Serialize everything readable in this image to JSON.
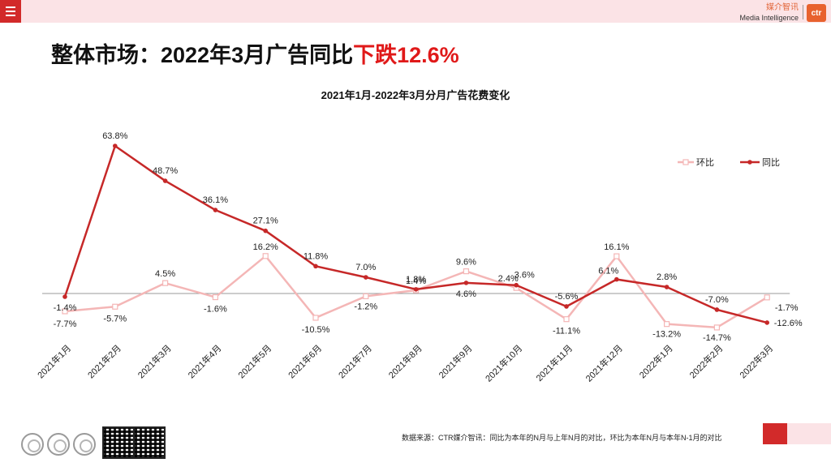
{
  "topbar": {
    "brand_cn": "媒介智讯",
    "brand_en": "Media Intelligence",
    "logo_text": "ctr"
  },
  "headline": {
    "part1": "整体市场：2022年3月广告同比",
    "part2": "下跌12.6%"
  },
  "footer": {
    "note": "数据来源：CTR媒介智讯：同比为本年的N月与上年N月的对比，环比为本年N月与本年N-1月的对比"
  },
  "colors": {
    "yoy": "#c62828",
    "mom": "#f4b6b6",
    "accent": "#d22a2a"
  },
  "chart_data": {
    "type": "line",
    "title": "2021年1月-2022年3月分月广告花费变化",
    "categories": [
      "2021年1月",
      "2021年2月",
      "2021年3月",
      "2021年4月",
      "2021年5月",
      "2021年6月",
      "2021年7月",
      "2021年8月",
      "2021年9月",
      "2021年10月",
      "2021年11月",
      "2021年12月",
      "2022年1月",
      "2022年2月",
      "2022年3月"
    ],
    "series": [
      {
        "name": "环比",
        "values": [
          -7.7,
          -5.7,
          4.5,
          -1.6,
          16.2,
          -10.5,
          -1.2,
          1.4,
          9.6,
          2.4,
          -11.1,
          16.1,
          -13.2,
          -14.7,
          -1.7
        ],
        "labels": [
          "-7.7%",
          "-5.7%",
          "4.5%",
          "-1.6%",
          "16.2%",
          "-10.5%",
          "-1.2%",
          "1.4%",
          "9.6%",
          "2.4%",
          "-11.1%",
          "16.1%",
          "-13.2%",
          "-14.7%",
          "-1.7%"
        ]
      },
      {
        "name": "同比",
        "values": [
          -1.4,
          63.8,
          48.7,
          36.1,
          27.1,
          11.8,
          7.0,
          1.8,
          4.6,
          3.6,
          -5.6,
          6.1,
          2.8,
          -7.0,
          -12.6
        ],
        "labels": [
          "-1.4%",
          "63.8%",
          "48.7%",
          "36.1%",
          "27.1%",
          "11.8%",
          "7.0%",
          "1.8%",
          "4.6%",
          "3.6%",
          "-5.6%",
          "6.1%",
          "2.8%",
          "-7.0%",
          "-12.6%"
        ]
      }
    ],
    "legend": [
      "环比",
      "同比"
    ],
    "legend_position": "top-right",
    "ylim": [
      -15,
      64
    ],
    "grid": false
  }
}
